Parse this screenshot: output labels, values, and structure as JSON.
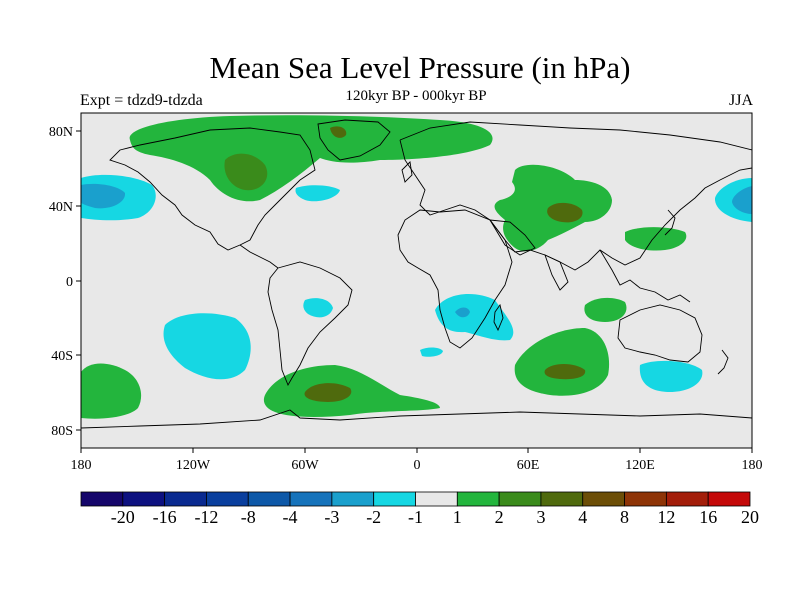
{
  "title": "Mean Sea Level Pressure (in hPa)",
  "subtitle_left": "Expt = tdzd9-tdzda",
  "subtitle_center": "120kyr BP - 000kyr BP",
  "subtitle_right": "JJA",
  "lat_ticks": [
    "80N",
    "40N",
    "0",
    "40S",
    "80S"
  ],
  "lon_ticks": [
    "180",
    "120W",
    "60W",
    "0",
    "60E",
    "120E",
    "180"
  ],
  "colorbar": {
    "labels": [
      "-20",
      "-16",
      "-12",
      "-8",
      "-4",
      "-3",
      "-2",
      "-1",
      "1",
      "2",
      "3",
      "4",
      "8",
      "12",
      "16",
      "20"
    ],
    "colors": [
      "#15066b",
      "#0d1180",
      "#0a2a90",
      "#0a3f9e",
      "#0d58a8",
      "#1673bb",
      "#1aa0cd",
      "#16d7e3",
      "#e8e8e8",
      "#23b53d",
      "#3a8b1b",
      "#4f6a0d",
      "#6c4e07",
      "#8e3407",
      "#a31e0a",
      "#c40909"
    ]
  },
  "colors": {
    "ocean_background": "#e8e8e8",
    "coastline": "#000000"
  }
}
